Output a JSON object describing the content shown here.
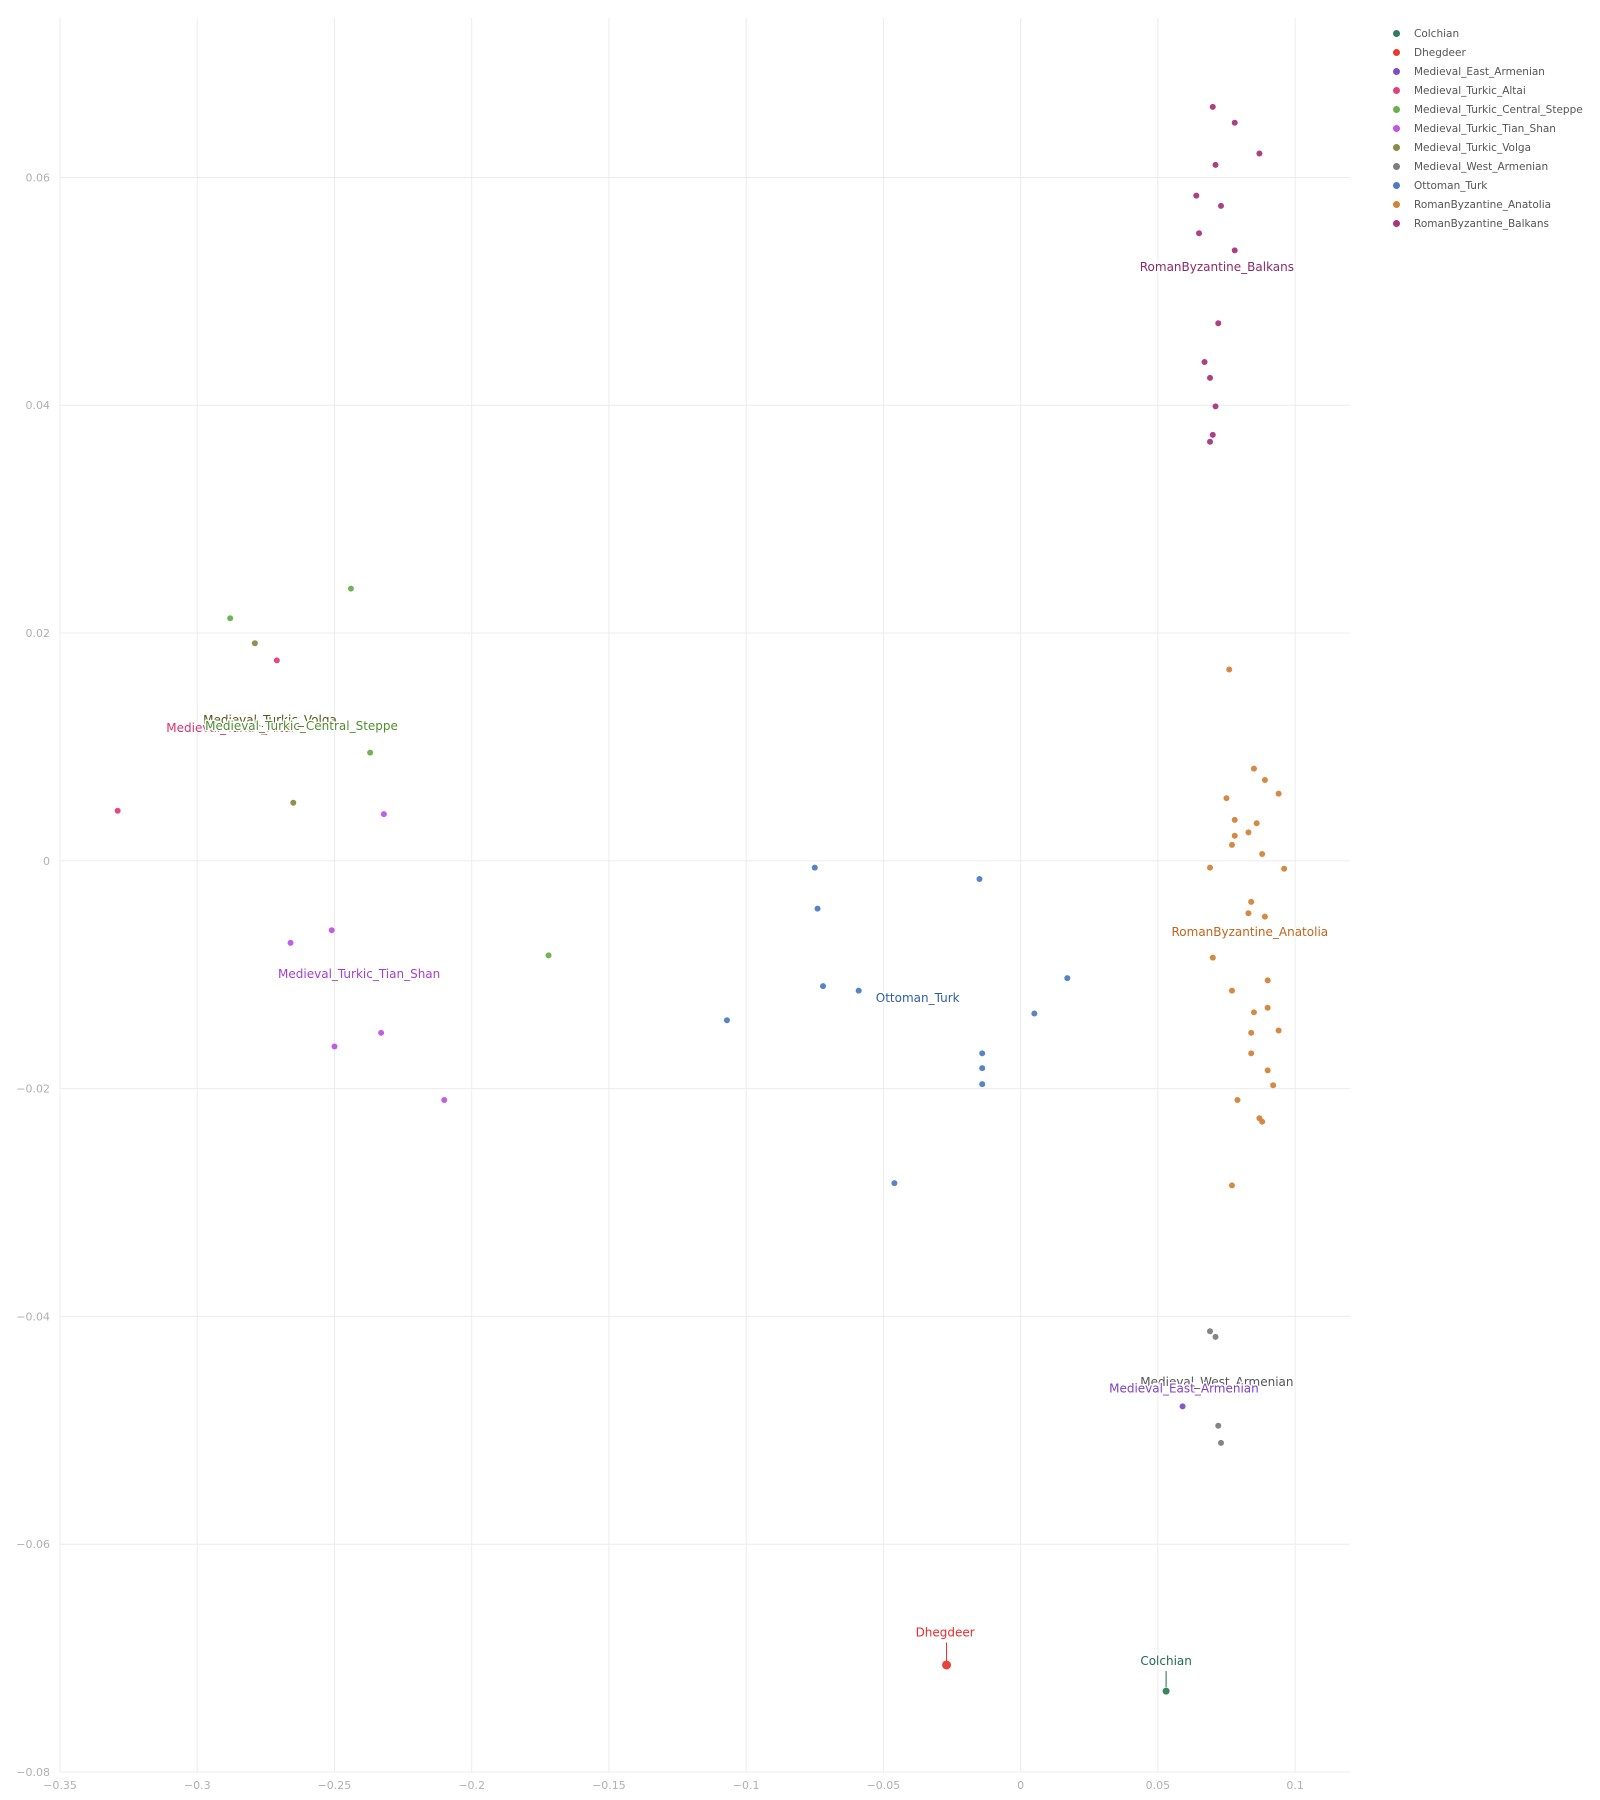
{
  "chart_data": {
    "type": "scatter",
    "title": "",
    "xlabel": "",
    "ylabel": "",
    "xlim": [
      -0.35,
      0.12
    ],
    "ylim": [
      -0.08,
      0.074
    ],
    "xticks": [
      -0.35,
      -0.3,
      -0.25,
      -0.2,
      -0.15,
      -0.1,
      -0.05,
      0,
      0.05,
      0.1
    ],
    "xtick_labels": [
      "−0.35",
      "−0.3",
      "−0.25",
      "−0.2",
      "−0.15",
      "−0.1",
      "−0.05",
      "0",
      "0.05",
      "0.1"
    ],
    "yticks": [
      -0.08,
      -0.06,
      -0.04,
      -0.02,
      0,
      0.02,
      0.04,
      0.06
    ],
    "ytick_labels": [
      "−0.08",
      "−0.06",
      "−0.04",
      "−0.02",
      "0",
      "0.02",
      "0.04",
      "0.06"
    ],
    "grid": true,
    "legend_position": "top-right",
    "series": [
      {
        "name": "Colchian",
        "color": "#2e7d5b",
        "points": [
          [
            0.053,
            -0.0729
          ]
        ]
      },
      {
        "name": "Dhegdeer",
        "color": "#e53935",
        "points": [
          [
            -0.027,
            -0.0706
          ]
        ]
      },
      {
        "name": "Medieval_East_Armenian",
        "color": "#7e4fc0",
        "points": [
          [
            0.059,
            -0.0479
          ]
        ]
      },
      {
        "name": "Medieval_Turkic_Altai",
        "color": "#e0407e",
        "points": [
          [
            -0.329,
            0.0044
          ],
          [
            -0.271,
            0.0176
          ]
        ]
      },
      {
        "name": "Medieval_Turkic_Central_Steppe",
        "color": "#6ab04c",
        "points": [
          [
            -0.244,
            0.0239
          ],
          [
            -0.288,
            0.0213
          ],
          [
            -0.237,
            0.0095
          ],
          [
            -0.172,
            -0.0083
          ]
        ]
      },
      {
        "name": "Medieval_Turkic_Tian_Shan",
        "color": "#bf55e0",
        "points": [
          [
            -0.232,
            0.0041
          ],
          [
            -0.266,
            -0.0072
          ],
          [
            -0.251,
            -0.0061
          ],
          [
            -0.233,
            -0.0151
          ],
          [
            -0.25,
            -0.0163
          ],
          [
            -0.21,
            -0.021
          ]
        ]
      },
      {
        "name": "Medieval_Turkic_Volga",
        "color": "#8a8a4a",
        "points": [
          [
            -0.279,
            0.0191
          ],
          [
            -0.265,
            0.0051
          ]
        ]
      },
      {
        "name": "Medieval_West_Armenian",
        "color": "#7d7d7d",
        "points": [
          [
            0.069,
            -0.0413
          ],
          [
            0.071,
            -0.0418
          ],
          [
            0.072,
            -0.0496
          ],
          [
            0.073,
            -0.0511
          ]
        ]
      },
      {
        "name": "Ottoman_Turk",
        "color": "#4e7cc4",
        "points": [
          [
            -0.075,
            -0.0006
          ],
          [
            -0.074,
            -0.0042
          ],
          [
            -0.015,
            -0.0016
          ],
          [
            -0.072,
            -0.011
          ],
          [
            -0.059,
            -0.0114
          ],
          [
            -0.107,
            -0.014
          ],
          [
            0.017,
            -0.0103
          ],
          [
            0.005,
            -0.0134
          ],
          [
            -0.014,
            -0.0169
          ],
          [
            -0.014,
            -0.0182
          ],
          [
            -0.014,
            -0.0196
          ],
          [
            -0.046,
            -0.0283
          ]
        ]
      },
      {
        "name": "RomanByzantine_Anatolia",
        "color": "#d2843a",
        "points": [
          [
            0.076,
            0.0168
          ],
          [
            0.085,
            0.0081
          ],
          [
            0.089,
            0.0071
          ],
          [
            0.094,
            0.0059
          ],
          [
            0.075,
            0.0055
          ],
          [
            0.078,
            0.0036
          ],
          [
            0.086,
            0.0033
          ],
          [
            0.078,
            0.0022
          ],
          [
            0.083,
            0.0025
          ],
          [
            0.077,
            0.0014
          ],
          [
            0.088,
            0.0006
          ],
          [
            0.069,
            -0.0006
          ],
          [
            0.096,
            -0.0007
          ],
          [
            0.084,
            -0.0036
          ],
          [
            0.083,
            -0.0046
          ],
          [
            0.089,
            -0.0049
          ],
          [
            0.07,
            -0.0085
          ],
          [
            0.09,
            -0.0105
          ],
          [
            0.077,
            -0.0114
          ],
          [
            0.09,
            -0.0129
          ],
          [
            0.085,
            -0.0133
          ],
          [
            0.094,
            -0.0149
          ],
          [
            0.084,
            -0.0151
          ],
          [
            0.084,
            -0.0169
          ],
          [
            0.09,
            -0.0184
          ],
          [
            0.092,
            -0.0197
          ],
          [
            0.079,
            -0.021
          ],
          [
            0.087,
            -0.0226
          ],
          [
            0.088,
            -0.0229
          ],
          [
            0.077,
            -0.0285
          ]
        ]
      },
      {
        "name": "RomanByzantine_Balkans",
        "color": "#a8357e",
        "points": [
          [
            0.07,
            0.0662
          ],
          [
            0.078,
            0.0648
          ],
          [
            0.087,
            0.0621
          ],
          [
            0.071,
            0.0611
          ],
          [
            0.064,
            0.0584
          ],
          [
            0.073,
            0.0575
          ],
          [
            0.065,
            0.0551
          ],
          [
            0.078,
            0.0536
          ],
          [
            0.072,
            0.0472
          ],
          [
            0.067,
            0.0438
          ],
          [
            0.069,
            0.0424
          ],
          [
            0.071,
            0.0399
          ],
          [
            0.07,
            0.0374
          ],
          [
            0.069,
            0.0368
          ]
        ]
      }
    ],
    "annotations": [
      {
        "text": "RomanByzantine_Balkans",
        "series": "RomanByzantine_Balkans",
        "x": 0.0715,
        "y": 0.0518,
        "color": "#8b2a6b",
        "size": 12
      },
      {
        "text": "Medieval_Turkic_Volga",
        "series": "Medieval_Turkic_Volga",
        "x": -0.2735,
        "y": 0.012,
        "color": "#55551c",
        "size": 12
      },
      {
        "text": "Medieval_Turkic_Altai",
        "series": "Medieval_Turkic_Altai",
        "x": -0.288,
        "y": 0.0113,
        "color": "#d6336c",
        "size": 12
      },
      {
        "text": "Medieval_Turkic_Central_Steppe",
        "series": "Medieval_Turkic_Central_Steppe",
        "x": -0.262,
        "y": 0.0115,
        "color": "#4f8f2f",
        "size": 12
      },
      {
        "text": "Medieval_Turkic_Tian_Shan",
        "series": "Medieval_Turkic_Tian_Shan",
        "x": -0.241,
        "y": -0.0103,
        "color": "#a43fd0",
        "size": 12
      },
      {
        "text": "Ottoman_Turk",
        "series": "Ottoman_Turk",
        "x": -0.0375,
        "y": -0.0124,
        "color": "#2d5fa8",
        "size": 12
      },
      {
        "text": "RomanByzantine_Anatolia",
        "series": "RomanByzantine_Anatolia",
        "x": 0.0835,
        "y": -0.0066,
        "color": "#c0651c",
        "size": 12
      },
      {
        "text": "Medieval_West_Armenian",
        "series": "Medieval_West_Armenian",
        "x": 0.0715,
        "y": -0.0461,
        "color": "#555555",
        "size": 12
      },
      {
        "text": "Medieval_East_Armenian",
        "series": "Medieval_East_Armenian",
        "x": 0.0595,
        "y": -0.0467,
        "color": "#7e3fc8",
        "size": 12
      },
      {
        "text": "Dhegdeer",
        "series": "Dhegdeer",
        "x": -0.0275,
        "y": -0.0681,
        "color": "#ef2b2b",
        "size": 17,
        "arrow": true
      },
      {
        "text": "Colchian",
        "series": "Colchian",
        "x": 0.053,
        "y": -0.0706,
        "color": "#1f6b4c",
        "size": 12,
        "arrow": true
      }
    ]
  }
}
